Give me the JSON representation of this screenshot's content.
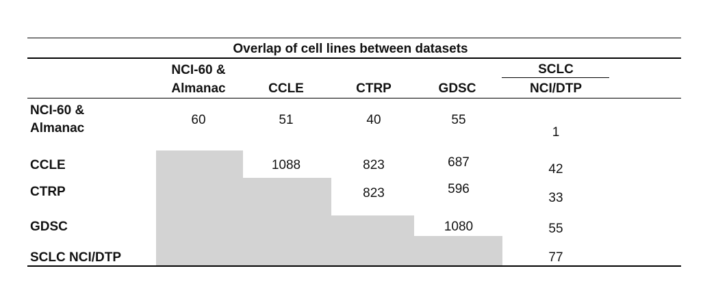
{
  "table": {
    "title": "Overlap of cell lines between datasets",
    "header": {
      "col1_line1": "NCI-60 &",
      "col1_line2": "Almanac",
      "col2": "CCLE",
      "col3": "CTRP",
      "col4": "GDSC",
      "col5_group": "SCLC",
      "col5_sub": "NCI/DTP"
    },
    "rows": [
      {
        "label_line1": "NCI-60 &",
        "label_line2": "Almanac",
        "values": [
          "60",
          "51",
          "40",
          "55",
          "1"
        ]
      },
      {
        "label": "CCLE",
        "values": [
          "1088",
          "823",
          "687",
          "42"
        ]
      },
      {
        "label": "CTRP",
        "values": [
          "823",
          "596",
          "33"
        ]
      },
      {
        "label": "GDSC",
        "values": [
          "1080",
          "55"
        ]
      },
      {
        "label": "SCLC NCI/DTP",
        "values": [
          "77"
        ]
      }
    ],
    "colors": {
      "shade": "#d3d3d3",
      "rule": "#000000"
    }
  }
}
